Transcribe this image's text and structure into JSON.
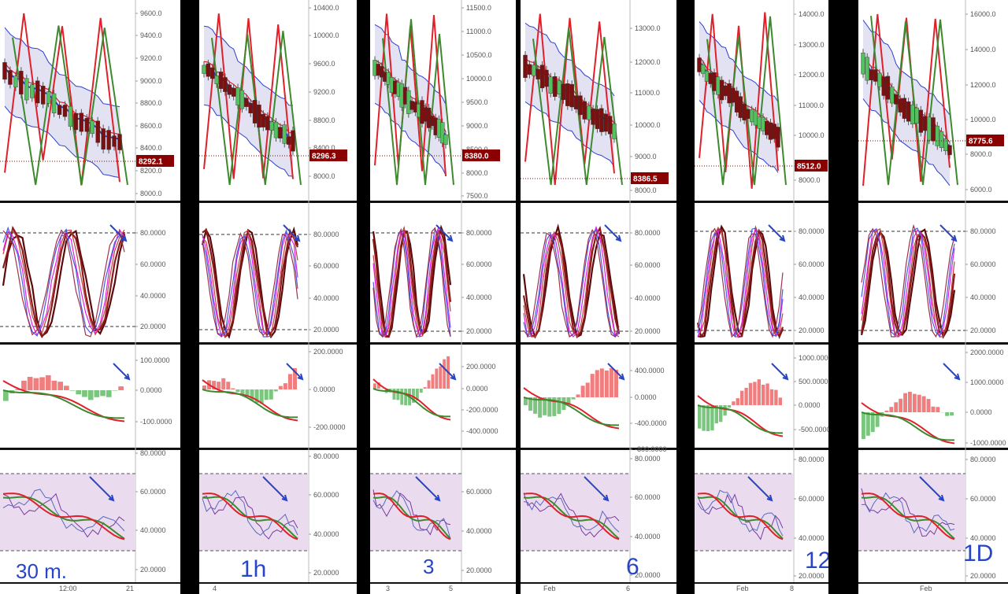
{
  "colors": {
    "candle_up": "#55c060",
    "candle_down": "#7a1010",
    "red_line": "#e0202a",
    "green_line": "#3d8a2e",
    "blue_line": "#2a3fd0",
    "band_fill": "#d8d8ee",
    "pink_zone": "#eadcee",
    "annotation": "#2845c8",
    "price_tag": "#8b0000"
  },
  "chart_data": [
    {
      "type": "line",
      "timeframe_note": "30 m.",
      "price": {
        "ticks": [
          "9600.0",
          "9400.0",
          "9200.0",
          "9000.0",
          "8800.0",
          "8600.0",
          "8400.0",
          "8200.0",
          "8000.0"
        ],
        "last": "8292.1"
      },
      "stoch": {
        "ticks": [
          "80.0000",
          "60.0000",
          "40.0000",
          "20.0000"
        ]
      },
      "macd": {
        "ticks": [
          "100.0000",
          "0.0000",
          "-100.0000"
        ]
      },
      "rsi": {
        "ticks": [
          "80.0000",
          "60.0000",
          "40.0000",
          "20.0000"
        ]
      },
      "x_ticks": [
        "12:00",
        "21"
      ]
    },
    {
      "type": "line",
      "timeframe_note": "1h",
      "price": {
        "ticks": [
          "10400.0",
          "10000.0",
          "9600.0",
          "9200.0",
          "8800.0",
          "8400.0",
          "8000.0"
        ],
        "last": "8296.3"
      },
      "stoch": {
        "ticks": [
          "80.0000",
          "60.0000",
          "40.0000",
          "20.0000"
        ]
      },
      "macd": {
        "ticks": [
          "200.0000",
          "0.0000",
          "-200.0000"
        ]
      },
      "rsi": {
        "ticks": [
          "80.0000",
          "60.0000",
          "40.0000",
          "20.0000"
        ]
      },
      "x_ticks": [
        "4"
      ]
    },
    {
      "type": "line",
      "timeframe_note": "3",
      "price": {
        "ticks": [
          "11500.0",
          "11000.0",
          "10500.0",
          "10000.0",
          "9500.0",
          "9000.0",
          "8500.0",
          "8000.0",
          "7500.0"
        ],
        "last": "8380.0"
      },
      "stoch": {
        "ticks": [
          "80.0000",
          "60.0000",
          "40.0000",
          "20.0000"
        ]
      },
      "macd": {
        "ticks": [
          "200.0000",
          "0.0000",
          "-200.0000",
          "-400.0000"
        ]
      },
      "rsi": {
        "ticks": [
          "60.0000",
          "40.0000",
          "20.0000"
        ]
      },
      "x_ticks": [
        "3",
        "5"
      ]
    },
    {
      "type": "line",
      "timeframe_note": "6",
      "price": {
        "ticks": [
          "13000.0",
          "12000.0",
          "11000.0",
          "10000.0",
          "9000.0",
          "8000.0"
        ],
        "last": "8386.5"
      },
      "stoch": {
        "ticks": [
          "80.0000",
          "60.0000",
          "40.0000",
          "20.0000"
        ]
      },
      "macd": {
        "ticks": [
          "400.0000",
          "0.0000",
          "-400.0000",
          "-800.0000"
        ]
      },
      "rsi": {
        "ticks": [
          "80.0000",
          "60.0000",
          "40.0000",
          "20.0000"
        ]
      },
      "x_ticks": [
        "Feb",
        "6"
      ]
    },
    {
      "type": "line",
      "timeframe_note": "12",
      "price": {
        "ticks": [
          "14000.0",
          "13000.0",
          "12000.0",
          "11000.0",
          "10000.0",
          "9000.0",
          "8000.0"
        ],
        "last": "8512.0"
      },
      "stoch": {
        "ticks": [
          "80.0000",
          "60.0000",
          "40.0000",
          "20.0000"
        ]
      },
      "macd": {
        "ticks": [
          "1000.0000",
          "500.0000",
          "0.0000",
          "-500.0000"
        ]
      },
      "rsi": {
        "ticks": [
          "80.0000",
          "60.0000",
          "40.0000",
          "20.0000"
        ]
      },
      "x_ticks": [
        "Feb",
        "8"
      ]
    },
    {
      "type": "line",
      "timeframe_note": "1D",
      "price": {
        "ticks": [
          "16000.0",
          "14000.0",
          "12000.0",
          "10000.0",
          "8000.0",
          "6000.0"
        ],
        "last": "8775.6"
      },
      "stoch": {
        "ticks": [
          "80.0000",
          "60.0000",
          "40.0000",
          "20.0000"
        ]
      },
      "macd": {
        "ticks": [
          "2000.0000",
          "1000.0000",
          "0.0000",
          "-1000.0000"
        ]
      },
      "rsi": {
        "ticks": [
          "80.0000",
          "60.0000",
          "40.0000",
          "20.0000"
        ]
      },
      "x_ticks": [
        "Feb"
      ]
    }
  ]
}
